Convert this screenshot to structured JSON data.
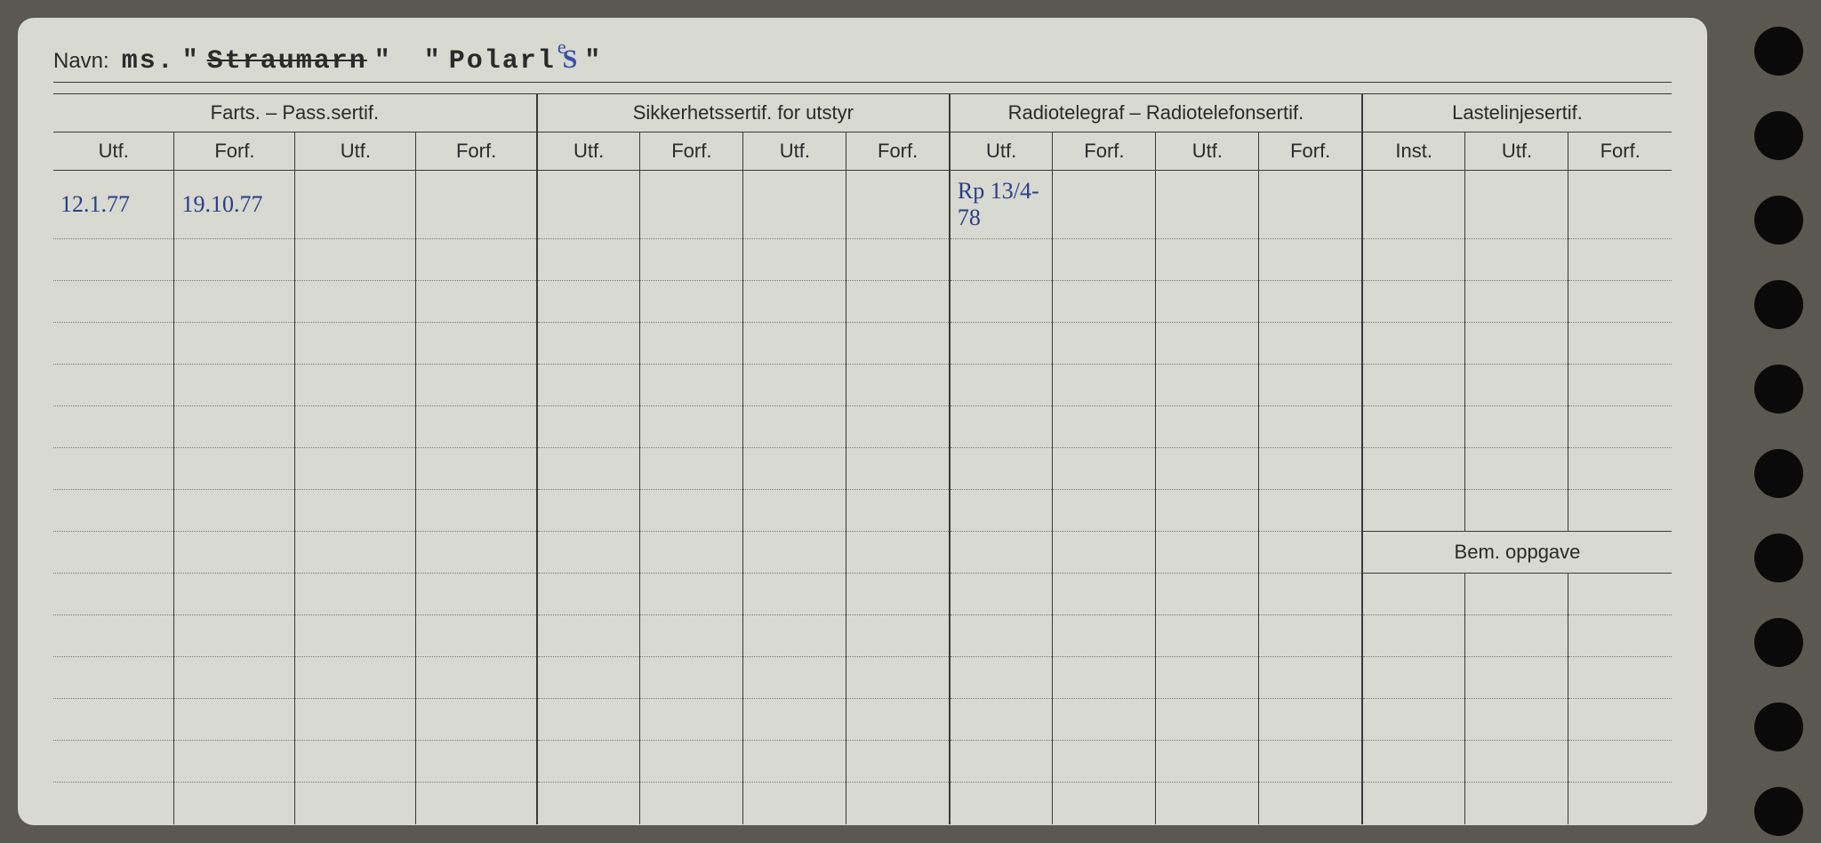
{
  "navn": {
    "label": "Navn:",
    "prefix_typed": "ms.",
    "quote1a": "\"",
    "struck_name": "Straumarn",
    "quote1b": "\"",
    "quote2a": "\"",
    "second_typed": "Polarl",
    "caret_mark": "e",
    "hand_suffix": "S",
    "quote2b": "\""
  },
  "groups": {
    "g1": "Farts. – Pass.sertif.",
    "g2": "Sikkerhetssertif. for utstyr",
    "g3": "Radiotelegraf – Radiotelefonsertif.",
    "g4": "Lastelinjesertif."
  },
  "sub": {
    "utf": "Utf.",
    "forf": "Forf.",
    "inst": "Inst."
  },
  "rows": [
    {
      "c0": "12.1.77",
      "c1": "19.10.77",
      "c8": "Rp 13/4-78"
    }
  ],
  "bem_label": "Bem. oppgave",
  "num_body_rows": 15,
  "bem_row_index": 8
}
